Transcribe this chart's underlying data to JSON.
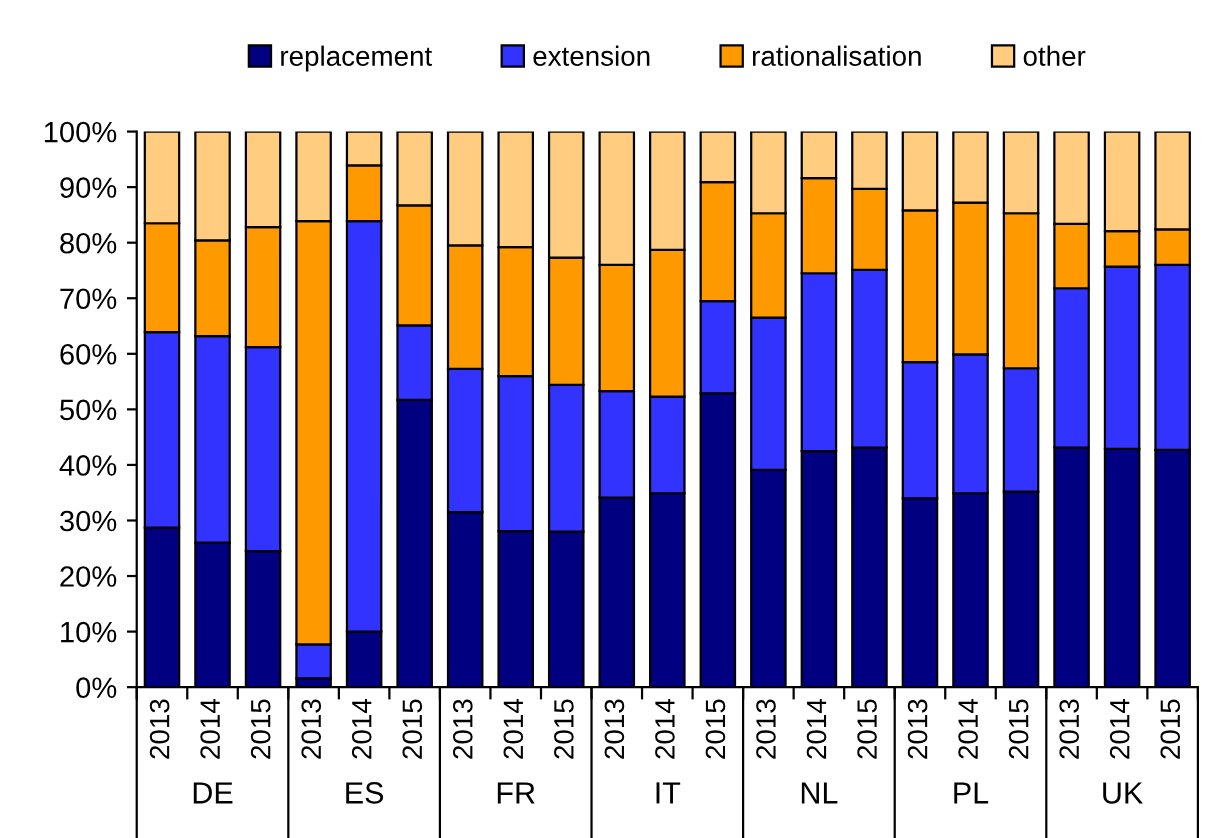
{
  "chart_data": {
    "type": "bar",
    "stacked": true,
    "categories": [
      "2013",
      "2014",
      "2015",
      "2013",
      "2014",
      "2015",
      "2013",
      "2014",
      "2015",
      "2013",
      "2014",
      "2015",
      "2013",
      "2014",
      "2015",
      "2013",
      "2014",
      "2015",
      "2013",
      "2014",
      "2015"
    ],
    "annotations": [
      "DE",
      "ES",
      "FR",
      "IT",
      "NL",
      "PL",
      "UK"
    ],
    "series": [
      {
        "name": "replacement",
        "color": "#000080",
        "values": [
          28.7,
          26.0,
          24.5,
          1.6,
          10.0,
          51.7,
          31.5,
          28.1,
          28.0,
          34.1,
          34.9,
          52.9,
          39.1,
          42.5,
          43.1,
          34.0,
          34.9,
          35.2,
          43.1,
          42.9,
          42.7
        ]
      },
      {
        "name": "extension",
        "color": "#3333ff",
        "values": [
          35.2,
          37.2,
          36.7,
          6.1,
          73.9,
          13.4,
          25.8,
          27.9,
          26.4,
          19.2,
          17.4,
          16.6,
          27.4,
          32.0,
          32.0,
          24.5,
          25.0,
          22.2,
          28.7,
          32.8,
          33.3
        ]
      },
      {
        "name": "rationalisation",
        "color": "#ff9900",
        "values": [
          19.6,
          17.2,
          21.6,
          76.2,
          10.0,
          21.6,
          22.2,
          23.2,
          22.9,
          22.7,
          26.4,
          21.4,
          18.8,
          17.1,
          14.6,
          27.3,
          27.3,
          27.9,
          11.6,
          6.4,
          6.4
        ]
      },
      {
        "name": "other",
        "color": "#ffcc80",
        "values": [
          16.5,
          19.6,
          17.2,
          16.1,
          6.1,
          13.3,
          20.5,
          20.8,
          22.7,
          24.0,
          21.3,
          9.1,
          14.7,
          8.4,
          10.3,
          14.2,
          12.8,
          14.7,
          16.6,
          17.9,
          17.6
        ]
      }
    ],
    "ylim": [
      0,
      100
    ],
    "yticks": [
      {
        "value": 0,
        "label": "0%"
      },
      {
        "value": 10,
        "label": "10%"
      },
      {
        "value": 20,
        "label": "20%"
      },
      {
        "value": 30,
        "label": "30%"
      },
      {
        "value": 40,
        "label": "40%"
      },
      {
        "value": 50,
        "label": "50%"
      },
      {
        "value": 60,
        "label": "60%"
      },
      {
        "value": 70,
        "label": "70%"
      },
      {
        "value": 80,
        "label": "80%"
      },
      {
        "value": 90,
        "label": "90%"
      },
      {
        "value": 100,
        "label": "100%"
      }
    ],
    "grid": false,
    "legend": "top"
  }
}
